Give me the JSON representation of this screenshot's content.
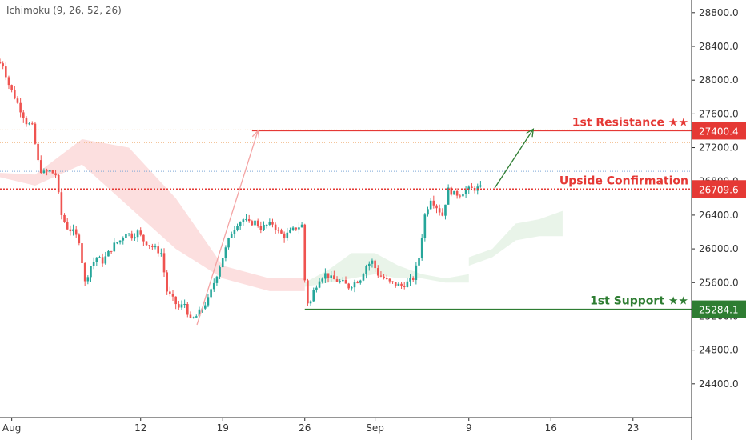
{
  "indicator": "Ichimoku (9, 26, 52, 26)",
  "colors": {
    "up": "#26a69a",
    "down": "#ef5350",
    "resistance": "#e53935",
    "support": "#2e7d32",
    "cloud_bear": "#fbd7d7",
    "cloud_bull": "#dff0df",
    "arrow_pink": "#f4a3a3",
    "arrow_green": "#2e7d32",
    "dotted_orange": "#f0b27a",
    "dotted_blue": "#7ea6d8",
    "confirm_dotted": "#e53935"
  },
  "chart_data": {
    "type": "candlestick",
    "y_axis": {
      "ticks": [
        "28800.0",
        "28400.0",
        "28000.0",
        "27600.0",
        "27200.0",
        "26800.0",
        "26400.0",
        "26000.0",
        "25600.0",
        "25200.0",
        "24800.0",
        "24400.0"
      ],
      "range": [
        24000,
        28950
      ]
    },
    "x_axis": {
      "ticks": [
        {
          "label": "Aug",
          "day": 0
        },
        {
          "label": "12",
          "day": 11
        },
        {
          "label": "19",
          "day": 18
        },
        {
          "label": "26",
          "day": 25
        },
        {
          "label": "Sep",
          "day": 31
        },
        {
          "label": "9",
          "day": 39
        },
        {
          "label": "16",
          "day": 46
        },
        {
          "label": "23",
          "day": 53
        }
      ],
      "range_days": [
        -1,
        58
      ]
    },
    "levels": [
      {
        "name": "1st Resistance ★★",
        "value": 27400.4,
        "tag": "27400.4",
        "color": "resistance",
        "start_day": 20.5
      },
      {
        "name": "Upside Confirmation",
        "value": 26709.6,
        "tag": "26709.6",
        "color": "resistance",
        "start_day": -1,
        "dotted": true
      },
      {
        "name": "1st Support ★★",
        "value": 25284.1,
        "tag": "25284.1",
        "color": "support",
        "start_day": 25
      }
    ],
    "guide_lines": [
      {
        "value": 27410,
        "color": "dotted_orange"
      },
      {
        "value": 27260,
        "color": "dotted_orange"
      },
      {
        "value": 26920,
        "color": "dotted_blue"
      }
    ],
    "price_path": [
      [
        -1,
        28220
      ],
      [
        -0.5,
        28180
      ],
      [
        0,
        27950
      ],
      [
        0.5,
        27800
      ],
      [
        1,
        27650
      ],
      [
        1.5,
        27500
      ],
      [
        2,
        27450
      ],
      [
        2.6,
        26950
      ],
      [
        3,
        26900
      ],
      [
        3.5,
        26920
      ],
      [
        4,
        26880
      ],
      [
        4.5,
        26400
      ],
      [
        5,
        26250
      ],
      [
        5.5,
        26200
      ],
      [
        6,
        26100
      ],
      [
        6.5,
        25600
      ],
      [
        7,
        25800
      ],
      [
        7.5,
        25900
      ],
      [
        8,
        25850
      ],
      [
        8.5,
        25950
      ],
      [
        9,
        26050
      ],
      [
        9.5,
        26100
      ],
      [
        10,
        26200
      ],
      [
        10.5,
        26150
      ],
      [
        11,
        26200
      ],
      [
        11.5,
        26100
      ],
      [
        12,
        26050
      ],
      [
        12.5,
        26000
      ],
      [
        13,
        25950
      ],
      [
        13.5,
        25500
      ],
      [
        14,
        25400
      ],
      [
        14.5,
        25300
      ],
      [
        15,
        25350
      ],
      [
        15.5,
        25150
      ],
      [
        16,
        25200
      ],
      [
        16.5,
        25300
      ],
      [
        17,
        25400
      ],
      [
        17.5,
        25600
      ],
      [
        18,
        25800
      ],
      [
        18.5,
        26000
      ],
      [
        19,
        26200
      ],
      [
        19.5,
        26300
      ],
      [
        20,
        26350
      ],
      [
        20.5,
        26300
      ],
      [
        21,
        26320
      ],
      [
        21.5,
        26250
      ],
      [
        22,
        26280
      ],
      [
        22.5,
        26300
      ],
      [
        23,
        26200
      ],
      [
        23.5,
        26150
      ],
      [
        24,
        26200
      ],
      [
        24.5,
        26250
      ],
      [
        25,
        26280
      ],
      [
        25.3,
        25500
      ],
      [
        25.6,
        25300
      ],
      [
        26,
        25500
      ],
      [
        26.5,
        25650
      ],
      [
        27,
        25700
      ],
      [
        27.5,
        25650
      ],
      [
        28,
        25620
      ],
      [
        28.5,
        25600
      ],
      [
        29,
        25550
      ],
      [
        29.5,
        25600
      ],
      [
        30,
        25650
      ],
      [
        30.5,
        25800
      ],
      [
        31,
        25850
      ],
      [
        31.5,
        25700
      ],
      [
        32,
        25650
      ],
      [
        32.5,
        25600
      ],
      [
        33,
        25580
      ],
      [
        33.5,
        25560
      ],
      [
        34,
        25600
      ],
      [
        34.5,
        25650
      ],
      [
        35,
        25900
      ],
      [
        35.5,
        26400
      ],
      [
        36,
        26600
      ],
      [
        36.5,
        26500
      ],
      [
        37,
        26400
      ],
      [
        37.5,
        26700
      ],
      [
        38,
        26650
      ],
      [
        38.5,
        26650
      ],
      [
        39,
        26700
      ],
      [
        39.5,
        26710
      ],
      [
        40,
        26720
      ]
    ],
    "cloud": [
      {
        "kind": "bear",
        "points_top": [
          [
            -1,
            26900
          ],
          [
            2,
            26880
          ],
          [
            6,
            27300
          ],
          [
            10,
            27200
          ],
          [
            14,
            26600
          ],
          [
            18,
            25800
          ],
          [
            22,
            25650
          ],
          [
            25,
            25650
          ]
        ],
        "points_bottom": [
          [
            -1,
            26850
          ],
          [
            2,
            26750
          ],
          [
            6,
            27000
          ],
          [
            10,
            26500
          ],
          [
            14,
            26000
          ],
          [
            18,
            25650
          ],
          [
            22,
            25500
          ],
          [
            25,
            25500
          ]
        ]
      },
      {
        "kind": "bull",
        "points_top": [
          [
            25,
            25600
          ],
          [
            27,
            25750
          ],
          [
            29,
            25950
          ],
          [
            31,
            25950
          ],
          [
            33,
            25800
          ],
          [
            35,
            25700
          ],
          [
            37,
            25650
          ],
          [
            39,
            25700
          ]
        ],
        "points_bottom": [
          [
            25,
            25550
          ],
          [
            27,
            25600
          ],
          [
            29,
            25650
          ],
          [
            31,
            25700
          ],
          [
            33,
            25650
          ],
          [
            35,
            25650
          ],
          [
            37,
            25600
          ],
          [
            39,
            25600
          ]
        ]
      },
      {
        "kind": "bull",
        "points_top": [
          [
            39,
            25900
          ],
          [
            41,
            26000
          ],
          [
            43,
            26300
          ],
          [
            45,
            26350
          ],
          [
            47,
            26450
          ]
        ],
        "points_bottom": [
          [
            39,
            25800
          ],
          [
            41,
            25900
          ],
          [
            43,
            26100
          ],
          [
            45,
            26150
          ],
          [
            47,
            26150
          ]
        ]
      }
    ],
    "arrows": [
      {
        "from": [
          15.8,
          25100
        ],
        "to": [
          21,
          27400
        ],
        "color": "arrow_pink"
      },
      {
        "from": [
          41.2,
          26720
        ],
        "to": [
          44.5,
          27420
        ],
        "color": "arrow_green"
      }
    ]
  }
}
